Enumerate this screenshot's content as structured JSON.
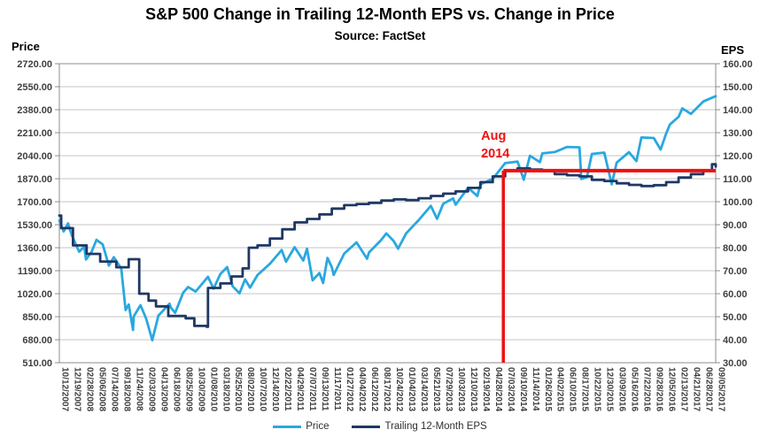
{
  "header": {
    "title": "S&P 500 Change in Trailing 12-Month EPS vs. Change in Price",
    "subtitle": "Source: FactSet"
  },
  "chart_data": {
    "type": "line",
    "title": "S&P 500 Change in Trailing 12-Month EPS vs. Change in Price",
    "subtitle": "Source: FactSet",
    "grid": true,
    "legend_position": "bottom-center",
    "left_axis": {
      "label": "Price",
      "min": 510,
      "max": 2720,
      "ticks": [
        2720,
        2550,
        2380,
        2210,
        2040,
        1870,
        1700,
        1530,
        1360,
        1190,
        1020,
        850,
        680,
        510
      ],
      "tick_format": "0.00"
    },
    "right_axis": {
      "label": "EPS",
      "min": 30,
      "max": 160,
      "ticks": [
        160,
        150,
        140,
        130,
        120,
        110,
        100,
        90,
        80,
        70,
        60,
        50,
        40,
        30
      ],
      "tick_format": "0.00"
    },
    "categories": [
      "10/12/2007",
      "12/19/2007",
      "02/28/2008",
      "05/06/2008",
      "07/14/2008",
      "09/18/2008",
      "11/24/2008",
      "02/03/2009",
      "04/13/2009",
      "06/18/2009",
      "08/25/2009",
      "10/30/2009",
      "01/08/2010",
      "03/18/2010",
      "05/25/2010",
      "08/02/2010",
      "10/07/2010",
      "12/14/2010",
      "02/22/2011",
      "04/29/2011",
      "07/07/2011",
      "09/13/2011",
      "11/17/2011",
      "01/27/2012",
      "04/04/2012",
      "06/12/2012",
      "08/17/2012",
      "10/24/2012",
      "01/04/2013",
      "03/14/2013",
      "05/21/2013",
      "07/29/2013",
      "10/03/2013",
      "12/10/2013",
      "02/19/2014",
      "04/28/2014",
      "07/03/2014",
      "09/10/2014",
      "11/14/2014",
      "01/26/2015",
      "04/02/2015",
      "06/10/2015",
      "08/17/2015",
      "10/22/2015",
      "12/30/2015",
      "03/09/2016",
      "05/16/2016",
      "07/22/2016",
      "09/28/2016",
      "12/05/2016",
      "02/13/2017",
      "04/21/2017",
      "06/28/2017",
      "09/05/2017"
    ],
    "series": [
      {
        "name": "Price",
        "axis": "left",
        "color": "#29A8E0",
        "style": "linear",
        "points": [
          [
            0,
            1561
          ],
          [
            0.35,
            1480
          ],
          [
            0.7,
            1540
          ],
          [
            1,
            1453
          ],
          [
            1.35,
            1380
          ],
          [
            1.6,
            1330
          ],
          [
            2,
            1368
          ],
          [
            2.15,
            1273
          ],
          [
            2.6,
            1330
          ],
          [
            3,
            1418
          ],
          [
            3.5,
            1385
          ],
          [
            4,
            1228
          ],
          [
            4.4,
            1290
          ],
          [
            5,
            1206
          ],
          [
            5.35,
            899
          ],
          [
            5.6,
            940
          ],
          [
            5.95,
            752
          ],
          [
            6,
            851
          ],
          [
            6.55,
            935
          ],
          [
            7,
            838
          ],
          [
            7.5,
            676
          ],
          [
            8,
            858
          ],
          [
            8.9,
            946
          ],
          [
            9,
            918
          ],
          [
            9.35,
            879
          ],
          [
            10,
            1028
          ],
          [
            10.4,
            1070
          ],
          [
            11,
            1036
          ],
          [
            12,
            1145
          ],
          [
            12.45,
            1057
          ],
          [
            13,
            1166
          ],
          [
            13.55,
            1217
          ],
          [
            14,
            1074
          ],
          [
            14.55,
            1023
          ],
          [
            15,
            1126
          ],
          [
            15.4,
            1065
          ],
          [
            16,
            1158
          ],
          [
            17,
            1241
          ],
          [
            17.95,
            1343
          ],
          [
            18.3,
            1257
          ],
          [
            19,
            1364
          ],
          [
            19.7,
            1265
          ],
          [
            20,
            1353
          ],
          [
            20.45,
            1119
          ],
          [
            21,
            1173
          ],
          [
            21.3,
            1099
          ],
          [
            21.65,
            1285
          ],
          [
            22,
            1216
          ],
          [
            22.15,
            1159
          ],
          [
            23,
            1316
          ],
          [
            24,
            1399
          ],
          [
            24.85,
            1278
          ],
          [
            25,
            1324
          ],
          [
            26,
            1418
          ],
          [
            26.4,
            1466
          ],
          [
            27,
            1409
          ],
          [
            27.35,
            1353
          ],
          [
            28,
            1466
          ],
          [
            29,
            1563
          ],
          [
            30,
            1669
          ],
          [
            30.5,
            1573
          ],
          [
            31,
            1685
          ],
          [
            31.8,
            1725
          ],
          [
            32,
            1678
          ],
          [
            33,
            1803
          ],
          [
            33.75,
            1742
          ],
          [
            34,
            1829
          ],
          [
            35,
            1869
          ],
          [
            36,
            1985
          ],
          [
            37,
            1996
          ],
          [
            37.5,
            1862
          ],
          [
            38,
            2040
          ],
          [
            38.8,
            1992
          ],
          [
            39,
            2057
          ],
          [
            40,
            2067
          ],
          [
            41,
            2105
          ],
          [
            42,
            2102
          ],
          [
            42.15,
            1868
          ],
          [
            42.6,
            1882
          ],
          [
            43,
            2053
          ],
          [
            44,
            2063
          ],
          [
            44.6,
            1829
          ],
          [
            45,
            1989
          ],
          [
            46,
            2066
          ],
          [
            46.6,
            2000
          ],
          [
            47,
            2175
          ],
          [
            48,
            2171
          ],
          [
            48.55,
            2085
          ],
          [
            49,
            2205
          ],
          [
            49.3,
            2271
          ],
          [
            50,
            2328
          ],
          [
            50.3,
            2390
          ],
          [
            51,
            2349
          ],
          [
            52,
            2441
          ],
          [
            53,
            2480
          ]
        ]
      },
      {
        "name": "Trailing 12-Month EPS",
        "axis": "right",
        "color": "#1F3864",
        "style": "step",
        "points": [
          [
            0,
            94
          ],
          [
            0.15,
            88.5
          ],
          [
            1.1,
            81
          ],
          [
            2.2,
            77.3
          ],
          [
            3.3,
            74
          ],
          [
            4.6,
            71.5
          ],
          [
            5.6,
            75
          ],
          [
            6.45,
            60
          ],
          [
            7.2,
            57
          ],
          [
            7.8,
            54.5
          ],
          [
            8.8,
            50.3
          ],
          [
            10.2,
            49.3
          ],
          [
            10.9,
            46
          ],
          [
            11.9,
            45.6
          ],
          [
            12,
            62.5
          ],
          [
            13,
            64.5
          ],
          [
            13.9,
            67.5
          ],
          [
            14.8,
            71
          ],
          [
            15.3,
            80
          ],
          [
            16,
            81
          ],
          [
            17,
            84
          ],
          [
            18,
            88
          ],
          [
            19,
            91
          ],
          [
            20,
            92.5
          ],
          [
            21,
            94.5
          ],
          [
            22,
            97
          ],
          [
            23,
            98.5
          ],
          [
            24,
            99
          ],
          [
            25,
            99.5
          ],
          [
            26,
            100.5
          ],
          [
            27,
            101
          ],
          [
            28,
            100.7
          ],
          [
            29,
            101.5
          ],
          [
            30,
            102.5
          ],
          [
            31,
            103.5
          ],
          [
            32,
            104.5
          ],
          [
            33,
            106
          ],
          [
            34,
            108.5
          ],
          [
            35,
            111
          ],
          [
            36,
            113.5
          ],
          [
            37,
            114.5
          ],
          [
            38,
            114
          ],
          [
            39,
            113.3
          ],
          [
            40,
            112
          ],
          [
            41,
            111.5
          ],
          [
            42,
            111
          ],
          [
            43,
            109.5
          ],
          [
            44,
            109
          ],
          [
            45,
            108
          ],
          [
            46,
            107.3
          ],
          [
            47,
            106.8
          ],
          [
            48,
            107.2
          ],
          [
            49,
            108.5
          ],
          [
            50,
            110.5
          ],
          [
            51,
            112
          ],
          [
            52,
            113.5
          ],
          [
            52.7,
            116.3
          ],
          [
            53,
            115.3
          ]
        ]
      }
    ],
    "annotation": {
      "line1": "Aug",
      "line2": "2014",
      "color": "#EE1111",
      "x_index": 35.85,
      "eps_value": 113.5
    },
    "legend": [
      {
        "label": "Price",
        "color": "#29A8E0"
      },
      {
        "label": "Trailing 12-Month EPS",
        "color": "#1F3864"
      }
    ],
    "colors": {
      "grid": "#C6C6C6",
      "border": "#8C8C8C",
      "tick_text": "#3F3F3F"
    }
  }
}
